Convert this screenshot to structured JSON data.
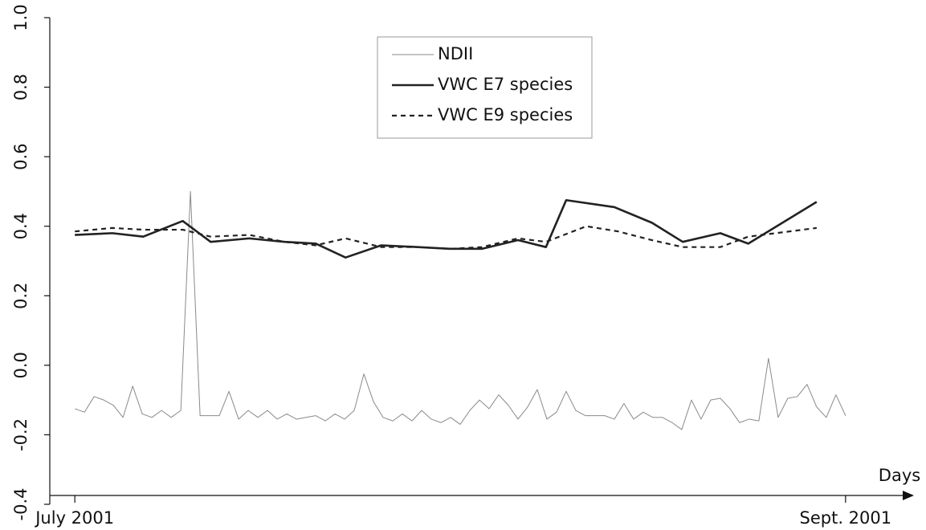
{
  "chart_data": {
    "type": "line",
    "x_label": "Days",
    "xlim": [
      -2.6,
      87.1
    ],
    "xticks": [
      {
        "value": 0,
        "label": "July 2001"
      },
      {
        "value": 80,
        "label": "Sept. 2001"
      }
    ],
    "ylim": [
      -0.4,
      1.0
    ],
    "yticks": [
      -0.4,
      -0.2,
      {
        "value": 0,
        "label": "0.0"
      },
      0.2,
      0.4,
      0.6,
      0.8,
      {
        "value": 1,
        "label": "1.0"
      }
    ],
    "legend": "top-center",
    "series": [
      {
        "name": "NDII",
        "color": "#8a8a8a",
        "width": 1,
        "linestyle": "solid",
        "x": [
          0,
          1,
          2,
          3,
          4,
          5,
          6,
          7,
          8,
          9,
          10,
          11,
          12,
          13,
          14,
          15,
          16,
          17,
          18,
          19,
          20,
          21,
          22,
          23,
          24,
          25,
          26,
          27,
          28,
          29,
          30,
          31,
          32,
          33,
          34,
          35,
          36,
          37,
          38,
          39,
          40,
          41,
          42,
          43,
          44,
          45,
          46,
          47,
          48,
          49,
          50,
          51,
          52,
          53,
          54,
          55,
          56,
          57,
          58,
          59,
          60,
          61,
          62,
          63,
          64,
          65,
          66,
          67,
          68,
          69,
          70,
          71,
          72,
          73,
          74,
          75,
          76,
          77,
          78,
          79,
          80
        ],
        "values": [
          -0.125,
          -0.135,
          -0.09,
          -0.1,
          -0.115,
          -0.15,
          -0.06,
          -0.14,
          -0.15,
          -0.13,
          -0.15,
          -0.13,
          0.5,
          -0.145,
          -0.145,
          -0.145,
          -0.075,
          -0.155,
          -0.13,
          -0.15,
          -0.13,
          -0.155,
          -0.14,
          -0.155,
          -0.15,
          -0.145,
          -0.16,
          -0.14,
          -0.155,
          -0.13,
          -0.025,
          -0.105,
          -0.15,
          -0.16,
          -0.14,
          -0.16,
          -0.13,
          -0.155,
          -0.165,
          -0.15,
          -0.17,
          -0.13,
          -0.1,
          -0.125,
          -0.085,
          -0.115,
          -0.155,
          -0.12,
          -0.07,
          -0.155,
          -0.135,
          -0.075,
          -0.13,
          -0.145,
          -0.145,
          -0.145,
          -0.155,
          -0.11,
          -0.155,
          -0.135,
          -0.15,
          -0.15,
          -0.165,
          -0.185,
          -0.1,
          -0.155,
          -0.1,
          -0.095,
          -0.125,
          -0.165,
          -0.155,
          -0.16,
          0.02,
          -0.15,
          -0.095,
          -0.09,
          -0.055,
          -0.12,
          -0.15,
          -0.085,
          -0.145
        ]
      },
      {
        "name": "VWC E7 species",
        "color": "#222222",
        "width": 2.6,
        "linestyle": "solid",
        "x": [
          0,
          3.9,
          7.1,
          11.2,
          14.1,
          18.1,
          21.8,
          25,
          28.1,
          31.8,
          35.6,
          38.9,
          42.25,
          46,
          48.9,
          51,
          56,
          59.9,
          63.1,
          67,
          69.9,
          77
        ],
        "values": [
          0.375,
          0.38,
          0.37,
          0.415,
          0.355,
          0.365,
          0.355,
          0.35,
          0.31,
          0.345,
          0.34,
          0.335,
          0.335,
          0.36,
          0.34,
          0.475,
          0.455,
          0.41,
          0.355,
          0.38,
          0.35,
          0.47
        ]
      },
      {
        "name": "VWC E9 species",
        "color": "#222222",
        "width": 2.2,
        "linestyle": "dashed",
        "x": [
          0,
          3.9,
          7.1,
          11.2,
          14.1,
          18.1,
          21.8,
          25,
          28.1,
          31.8,
          35.6,
          38.9,
          42.25,
          46,
          48.9,
          53.1,
          56.4,
          59.9,
          63.1,
          67,
          69.9,
          77
        ],
        "values": [
          0.385,
          0.395,
          0.39,
          0.39,
          0.37,
          0.375,
          0.355,
          0.345,
          0.365,
          0.34,
          0.34,
          0.335,
          0.34,
          0.365,
          0.355,
          0.4,
          0.385,
          0.36,
          0.34,
          0.34,
          0.37,
          0.395
        ]
      }
    ]
  }
}
